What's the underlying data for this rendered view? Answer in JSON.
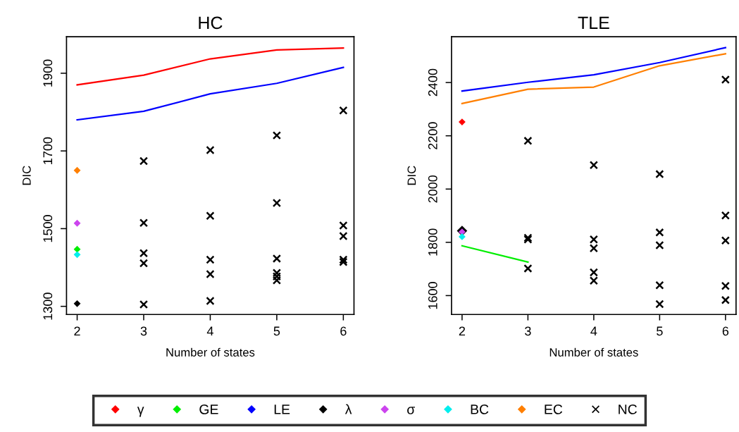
{
  "chart_data": [
    {
      "type": "scatter",
      "title": "HC",
      "xlabel": "Number of states",
      "ylabel": "DIC",
      "xlim": [
        1.84,
        6.16
      ],
      "xticks": [
        2,
        3,
        4,
        5,
        6
      ],
      "ylim": [
        1279,
        1994
      ],
      "yticks": [
        1300,
        1500,
        1700,
        1900
      ],
      "grid": false,
      "legend": "bottom",
      "series": [
        {
          "name": "γ",
          "type": "line",
          "color": "#ff0000",
          "marker": "none",
          "x": [
            2,
            3,
            4,
            5,
            6
          ],
          "values": [
            1870,
            1895,
            1937,
            1960,
            1965
          ]
        },
        {
          "name": "GE",
          "color": "#00ee00",
          "marker": "diamond",
          "x": [
            2
          ],
          "values": [
            1447
          ]
        },
        {
          "name": "LE",
          "type": "line",
          "color": "#0000ff",
          "marker": "none",
          "x": [
            2,
            3,
            4,
            5,
            6
          ],
          "values": [
            1780,
            1802,
            1847,
            1874,
            1915
          ]
        },
        {
          "name": "λ",
          "color": "#000000",
          "marker": "diamond",
          "x": [
            2
          ],
          "values": [
            1307
          ]
        },
        {
          "name": "σ",
          "color": "#cc44ee",
          "marker": "diamond",
          "x": [
            2
          ],
          "values": [
            1514
          ]
        },
        {
          "name": "BC",
          "color": "#00eeee",
          "marker": "diamond",
          "x": [
            2
          ],
          "values": [
            1433
          ]
        },
        {
          "name": "EC",
          "color": "#ff7f00",
          "marker": "diamond",
          "x": [
            2
          ],
          "values": [
            1650
          ]
        },
        {
          "name": "NC",
          "color": "#000000",
          "marker": "cross",
          "x": [
            3,
            3,
            3,
            3,
            3,
            4,
            4,
            4,
            4,
            4,
            5,
            5,
            5,
            5,
            5,
            5,
            6,
            6,
            6,
            6,
            6
          ],
          "values": [
            1674,
            1515,
            1437,
            1411,
            1305,
            1702,
            1533,
            1420,
            1383,
            1314,
            1740,
            1566,
            1423,
            1386,
            1377,
            1367,
            1804,
            1508,
            1481,
            1420,
            1414
          ]
        }
      ]
    },
    {
      "type": "scatter",
      "title": "TLE",
      "xlabel": "Number of states",
      "ylabel": "DIC",
      "xlim": [
        1.84,
        6.16
      ],
      "xticks": [
        2,
        3,
        4,
        5,
        6
      ],
      "ylim": [
        1529,
        2572
      ],
      "yticks": [
        1600,
        1800,
        2000,
        2200,
        2400
      ],
      "grid": false,
      "legend": "bottom",
      "series": [
        {
          "name": "γ",
          "color": "#ff0000",
          "marker": "diamond",
          "x": [
            2
          ],
          "values": [
            2252
          ]
        },
        {
          "name": "GE",
          "type": "line",
          "color": "#00ee00",
          "marker": "none",
          "x": [
            2,
            3
          ],
          "values": [
            1787,
            1726
          ]
        },
        {
          "name": "LE",
          "type": "line",
          "color": "#0000ff",
          "marker": "none",
          "x": [
            2,
            3,
            4,
            5,
            6
          ],
          "values": [
            2368,
            2401,
            2429,
            2475,
            2531
          ]
        },
        {
          "name": "λ",
          "color": "#000000",
          "marker": "diamond",
          "x": [
            2
          ],
          "values": [
            1843
          ]
        },
        {
          "name": "σ",
          "color": "#cc44ee",
          "marker": "diamond",
          "x": [
            2
          ],
          "values": [
            1839
          ]
        },
        {
          "name": "BC",
          "color": "#00eeee",
          "marker": "diamond",
          "x": [
            2
          ],
          "values": [
            1821
          ]
        },
        {
          "name": "EC",
          "type": "line",
          "color": "#ff7f00",
          "marker": "none",
          "x": [
            2,
            3,
            4,
            5,
            6
          ],
          "values": [
            2321,
            2375,
            2383,
            2463,
            2508
          ]
        },
        {
          "name": "NC",
          "color": "#000000",
          "marker": "cross",
          "x": [
            3,
            3,
            3,
            3,
            4,
            4,
            4,
            4,
            4,
            5,
            5,
            5,
            5,
            5,
            6,
            6,
            6,
            6,
            6
          ],
          "values": [
            2181,
            1817,
            1811,
            1702,
            2090,
            1811,
            1778,
            1687,
            1656,
            2056,
            1837,
            1789,
            1639,
            1568,
            2411,
            1901,
            1807,
            1636,
            1583
          ]
        }
      ]
    }
  ]
}
